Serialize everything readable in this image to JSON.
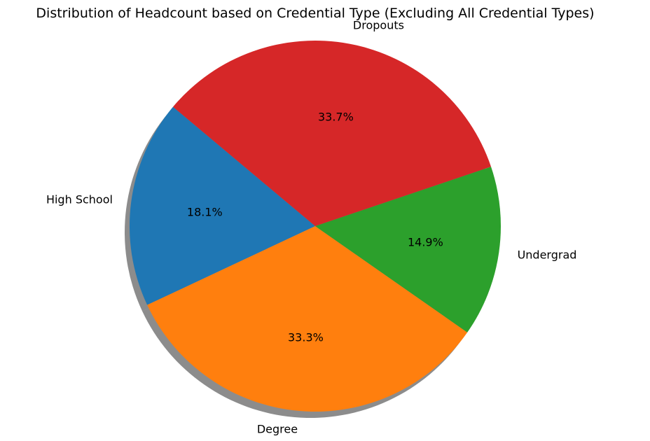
{
  "chart_data": {
    "type": "pie",
    "title": "Distribution of Headcount based on Credential Type (Excluding All Credential Types)",
    "slices": [
      {
        "label": "High School",
        "value": 18.1,
        "pct_label": "18.1%",
        "color": "#1f77b4"
      },
      {
        "label": "Degree",
        "value": 33.3,
        "pct_label": "33.3%",
        "color": "#ff7f0e"
      },
      {
        "label": "Undergrad",
        "value": 14.9,
        "pct_label": "14.9%",
        "color": "#2ca02c"
      },
      {
        "label": "Dropouts",
        "value": 33.7,
        "pct_label": "33.7%",
        "color": "#d62728"
      }
    ],
    "start_angle_deg": 140,
    "shadow": true
  }
}
